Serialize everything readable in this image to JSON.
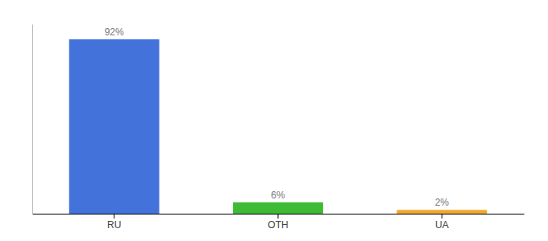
{
  "chart_data": {
    "type": "bar",
    "categories": [
      "RU",
      "OTH",
      "UA"
    ],
    "values": [
      92,
      6,
      2
    ],
    "value_labels": [
      "92%",
      "6%",
      "2%"
    ],
    "colors": [
      "#4472db",
      "#3dbb35",
      "#f0a830"
    ],
    "ylim": [
      0,
      100
    ],
    "data_labels": true,
    "tick_labels": "x",
    "grid": false
  }
}
